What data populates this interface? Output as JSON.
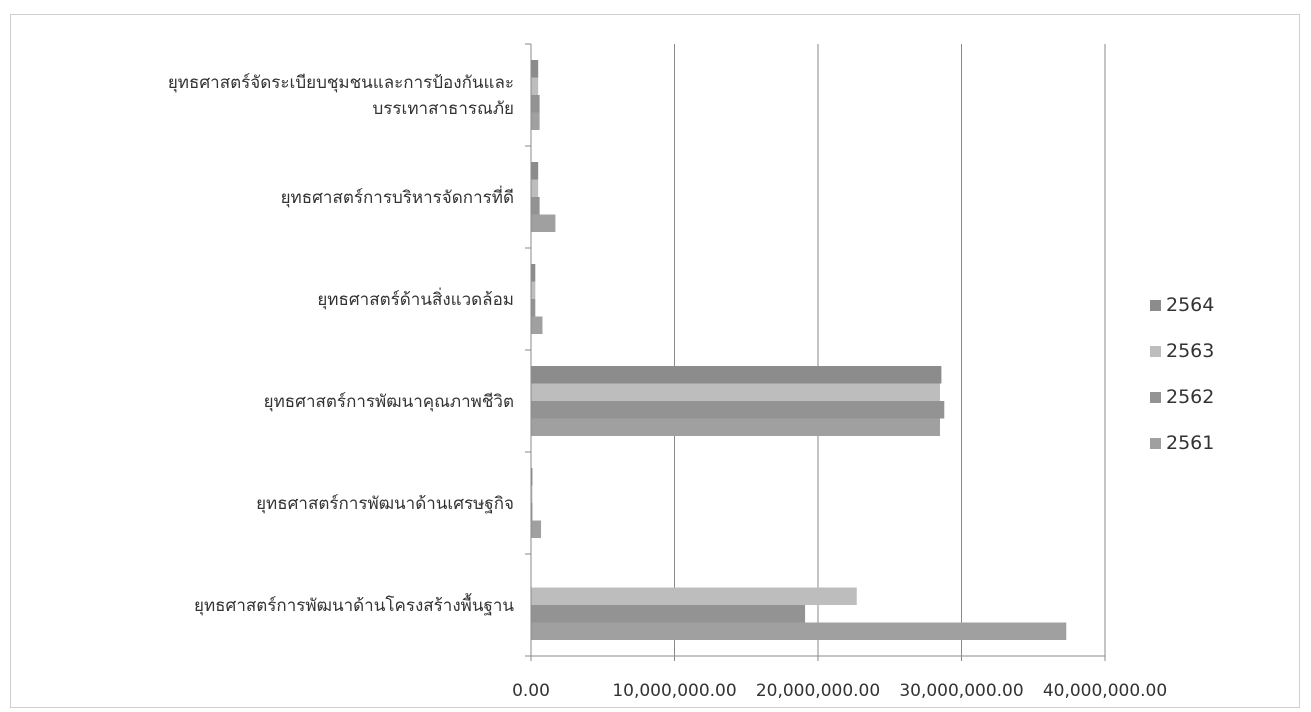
{
  "chart_data": {
    "type": "bar",
    "orientation": "horizontal",
    "title": "",
    "xlabel": "",
    "ylabel": "",
    "categories": [
      [
        "ยุทธศาสตร์จัดระเบียบชุมชนและการป้องกันและ",
        "บรรเทาสาธารณภัย"
      ],
      [
        "ยุทธศาสตร์การบริหารจัดการที่ดี"
      ],
      [
        "ยุทธศาสตร์ด้านสิ่งแวดล้อม"
      ],
      [
        "ยุทธศาสตร์การพัฒนาคุณภาพชีวิต"
      ],
      [
        "ยุทธศาสตร์การพัฒนาด้านเศรษฐกิจ"
      ],
      [
        "ยุทธศาสตร์การพัฒนาด้านโครงสร้างพื้นฐาน"
      ]
    ],
    "series": [
      {
        "name": "2564",
        "color": "#8c8c8c",
        "values": [
          500000,
          500000,
          300000,
          28600000,
          100000,
          0
        ]
      },
      {
        "name": "2563",
        "color": "#bdbdbd",
        "values": [
          500000,
          500000,
          300000,
          28500000,
          100000,
          22700000
        ]
      },
      {
        "name": "2562",
        "color": "#939393",
        "values": [
          600000,
          600000,
          300000,
          28800000,
          100000,
          19100000
        ]
      },
      {
        "name": "2561",
        "color": "#a0a0a0",
        "values": [
          600000,
          1700000,
          800000,
          28500000,
          700000,
          37300000
        ]
      }
    ],
    "xlim": [
      0,
      40000000
    ],
    "ticks": [
      0,
      10000000,
      20000000,
      30000000,
      40000000
    ],
    "tick_labels": [
      "0.00",
      "10,000,000.00",
      "20,000,000.00",
      "30,000,000.00",
      "40,000,000.00"
    ],
    "legend_position": "right",
    "grid": true
  }
}
